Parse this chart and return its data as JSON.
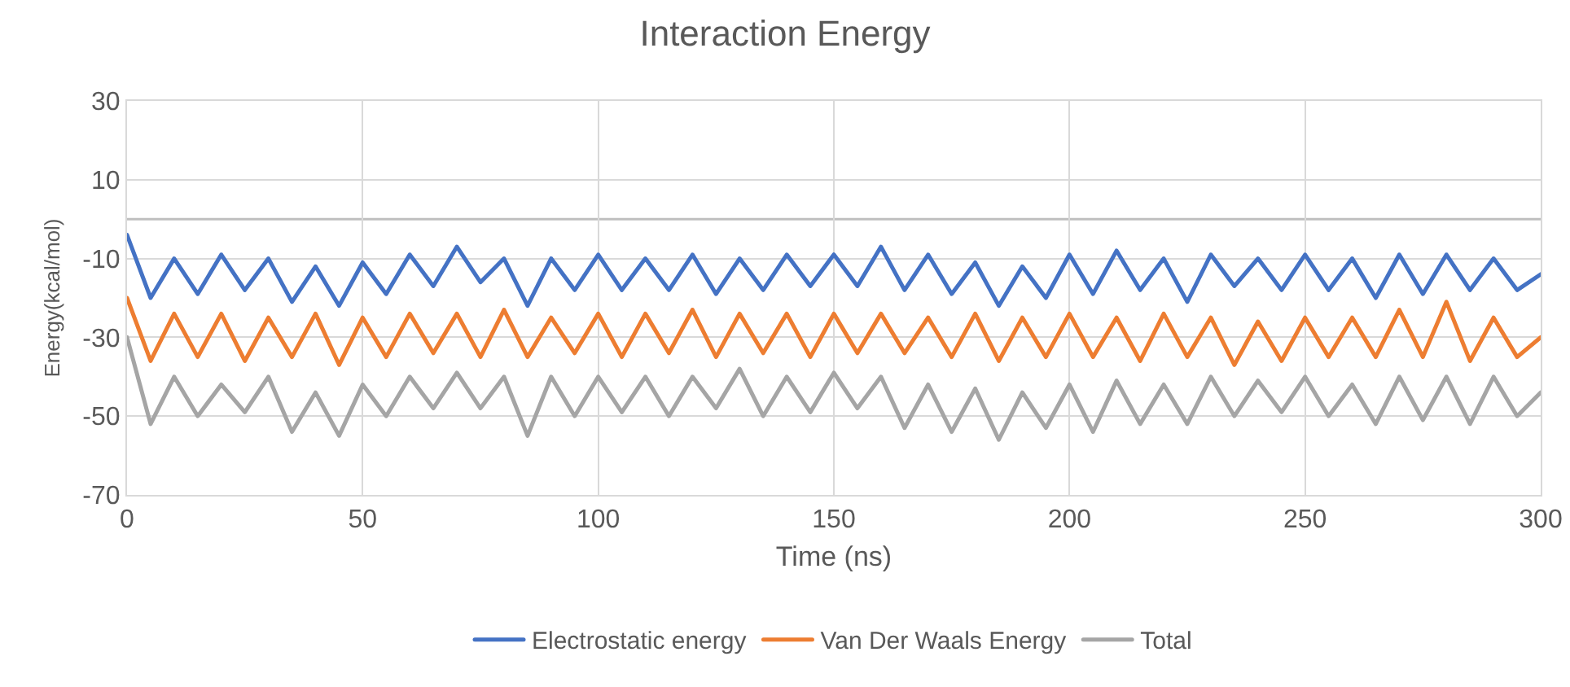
{
  "chart_data": {
    "type": "line",
    "title": "Interaction Energy",
    "xlabel": "Time (ns)",
    "ylabel": "Energy(kcal/mol)",
    "x": [
      0,
      5,
      10,
      15,
      20,
      25,
      30,
      35,
      40,
      45,
      50,
      55,
      60,
      65,
      70,
      75,
      80,
      85,
      90,
      95,
      100,
      105,
      110,
      115,
      120,
      125,
      130,
      135,
      140,
      145,
      150,
      155,
      160,
      165,
      170,
      175,
      180,
      185,
      190,
      195,
      200,
      205,
      210,
      215,
      220,
      225,
      230,
      235,
      240,
      245,
      250,
      255,
      260,
      265,
      270,
      275,
      280,
      285,
      290,
      295,
      300
    ],
    "series": [
      {
        "name": "Electrostatic energy",
        "color": "#4472c4",
        "values": [
          -4,
          -20,
          -10,
          -19,
          -9,
          -18,
          -10,
          -21,
          -12,
          -22,
          -11,
          -19,
          -9,
          -17,
          -7,
          -16,
          -10,
          -22,
          -10,
          -18,
          -9,
          -18,
          -10,
          -18,
          -9,
          -19,
          -10,
          -18,
          -9,
          -17,
          -9,
          -17,
          -7,
          -18,
          -9,
          -19,
          -11,
          -22,
          -12,
          -20,
          -9,
          -19,
          -8,
          -18,
          -10,
          -21,
          -9,
          -17,
          -10,
          -18,
          -9,
          -18,
          -10,
          -20,
          -9,
          -19,
          -9,
          -18,
          -10,
          -18,
          -14
        ]
      },
      {
        "name": "Van Der Waals Energy",
        "color": "#ed7d31",
        "values": [
          -20,
          -36,
          -24,
          -35,
          -24,
          -36,
          -25,
          -35,
          -24,
          -37,
          -25,
          -35,
          -24,
          -34,
          -24,
          -35,
          -23,
          -35,
          -25,
          -34,
          -24,
          -35,
          -24,
          -34,
          -23,
          -35,
          -24,
          -34,
          -24,
          -35,
          -24,
          -34,
          -24,
          -34,
          -25,
          -35,
          -24,
          -36,
          -25,
          -35,
          -24,
          -35,
          -25,
          -36,
          -24,
          -35,
          -25,
          -37,
          -26,
          -36,
          -25,
          -35,
          -25,
          -35,
          -23,
          -35,
          -21,
          -36,
          -25,
          -35,
          -30
        ]
      },
      {
        "name": "Total",
        "color": "#a5a5a5",
        "values": [
          -30,
          -52,
          -40,
          -50,
          -42,
          -49,
          -40,
          -54,
          -44,
          -55,
          -42,
          -50,
          -40,
          -48,
          -39,
          -48,
          -40,
          -55,
          -40,
          -50,
          -40,
          -49,
          -40,
          -50,
          -40,
          -48,
          -38,
          -50,
          -40,
          -49,
          -39,
          -48,
          -40,
          -53,
          -42,
          -54,
          -43,
          -56,
          -44,
          -53,
          -42,
          -54,
          -41,
          -52,
          -42,
          -52,
          -40,
          -50,
          -41,
          -49,
          -40,
          -50,
          -42,
          -52,
          -40,
          -51,
          -40,
          -52,
          -40,
          -50,
          -44
        ]
      }
    ],
    "xlim": [
      0,
      300
    ],
    "xticks": [
      0,
      50,
      100,
      150,
      200,
      250,
      300
    ],
    "ylim": [
      -70,
      30
    ],
    "yticks": [
      -70,
      -50,
      -30,
      -10,
      10,
      30
    ],
    "ref_lines": [
      {
        "axis": "y",
        "value": 0,
        "color": "#bfbfbf"
      }
    ],
    "grid": true,
    "legend": "bottom",
    "marker": "none",
    "line_style": "solid"
  }
}
